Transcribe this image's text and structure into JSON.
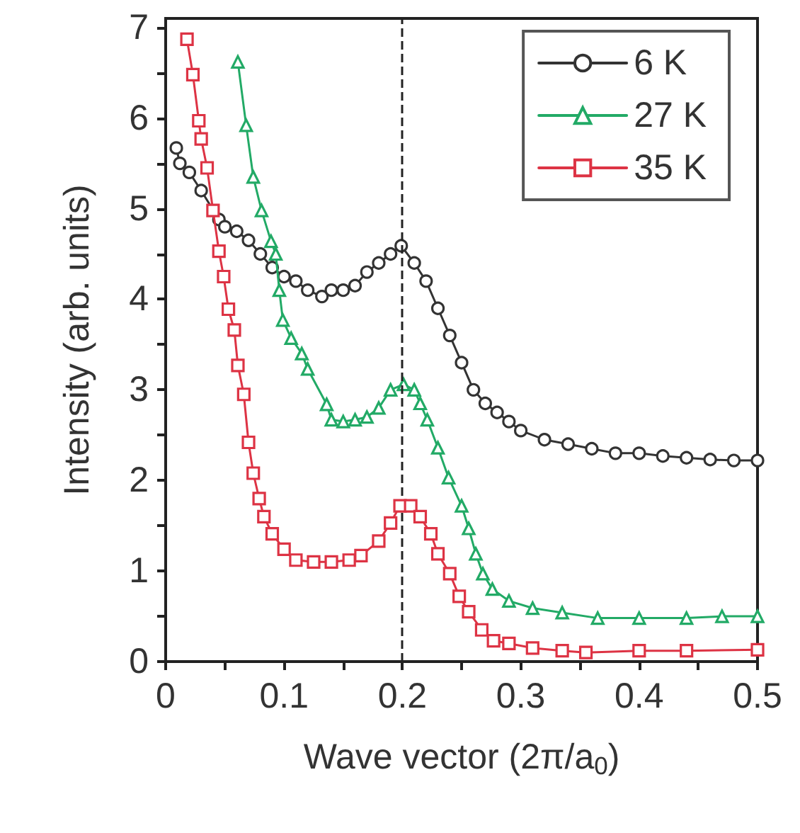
{
  "chart_data": {
    "type": "line",
    "xlabel": "Wave vector (2π/a$_{0}$)",
    "ylabel": "Intensity (arb. units)",
    "xlim": [
      0,
      0.5
    ],
    "ylim": [
      0,
      7.1
    ],
    "xticks": [
      0,
      {
        "value": 0.05,
        "label": null
      },
      0.1,
      {
        "value": 0.15,
        "label": null
      },
      0.2,
      {
        "value": 0.25,
        "label": null
      },
      0.3,
      {
        "value": 0.35,
        "label": null
      },
      0.4,
      {
        "value": 0.45,
        "label": null
      },
      0.5
    ],
    "yticks": [
      0,
      {
        "value": 0.5,
        "label": null
      },
      1,
      {
        "value": 1.5,
        "label": null
      },
      2,
      {
        "value": 2.5,
        "label": null
      },
      3,
      {
        "value": 3.5,
        "label": null
      },
      4,
      {
        "value": 4.5,
        "label": null
      },
      5,
      {
        "value": 5.5,
        "label": null
      },
      6,
      {
        "value": 6.5,
        "label": null
      },
      7
    ],
    "legend": "top right",
    "grid": false,
    "ref_lines": [
      {
        "axis": "x",
        "value": 0.2,
        "color": "#222222",
        "line_style": "dashed"
      }
    ],
    "series": [
      {
        "name": "6 K",
        "color": "#333333",
        "marker": "circle",
        "x": [
          0.009,
          0.012,
          0.02,
          0.03,
          0.045,
          0.05,
          0.06,
          0.07,
          0.08,
          0.09,
          0.1,
          0.11,
          0.12,
          0.132,
          0.14,
          0.15,
          0.16,
          0.17,
          0.18,
          0.19,
          0.199,
          0.21,
          0.22,
          0.23,
          0.24,
          0.25,
          0.26,
          0.27,
          0.28,
          0.29,
          0.3,
          0.32,
          0.34,
          0.36,
          0.38,
          0.4,
          0.42,
          0.44,
          0.46,
          0.48,
          0.5
        ],
        "values": [
          5.67,
          5.5,
          5.4,
          5.2,
          4.88,
          4.8,
          4.75,
          4.65,
          4.5,
          4.35,
          4.25,
          4.2,
          4.1,
          4.03,
          4.1,
          4.1,
          4.15,
          4.3,
          4.4,
          4.5,
          4.59,
          4.4,
          4.2,
          3.9,
          3.6,
          3.3,
          3.0,
          2.85,
          2.75,
          2.65,
          2.55,
          2.45,
          2.4,
          2.35,
          2.3,
          2.3,
          2.27,
          2.25,
          2.23,
          2.22,
          2.22
        ]
      },
      {
        "name": "27 K",
        "color": "#22aa66",
        "marker": "triangle",
        "x": [
          0.061,
          0.068,
          0.074,
          0.081,
          0.089,
          0.093,
          0.096,
          0.099,
          0.106,
          0.115,
          0.12,
          0.136,
          0.14,
          0.15,
          0.16,
          0.17,
          0.18,
          0.19,
          0.201,
          0.21,
          0.215,
          0.221,
          0.23,
          0.239,
          0.25,
          0.256,
          0.262,
          0.268,
          0.276,
          0.29,
          0.31,
          0.335,
          0.365,
          0.4,
          0.44,
          0.47,
          0.5
        ],
        "values": [
          6.62,
          5.92,
          5.35,
          4.98,
          4.64,
          4.5,
          4.1,
          3.77,
          3.57,
          3.4,
          3.23,
          2.84,
          2.67,
          2.65,
          2.67,
          2.7,
          2.8,
          3.0,
          3.06,
          3.0,
          2.85,
          2.67,
          2.36,
          2.03,
          1.72,
          1.47,
          1.19,
          0.97,
          0.8,
          0.67,
          0.59,
          0.54,
          0.48,
          0.48,
          0.48,
          0.5,
          0.5
        ]
      },
      {
        "name": "35 K",
        "color": "#dd3344",
        "marker": "square",
        "x": [
          0.018,
          0.023,
          0.028,
          0.03,
          0.035,
          0.04,
          0.045,
          0.049,
          0.053,
          0.058,
          0.061,
          0.066,
          0.07,
          0.074,
          0.079,
          0.083,
          0.09,
          0.1,
          0.11,
          0.125,
          0.14,
          0.155,
          0.165,
          0.18,
          0.19,
          0.198,
          0.207,
          0.215,
          0.224,
          0.23,
          0.24,
          0.248,
          0.256,
          0.267,
          0.277,
          0.29,
          0.31,
          0.335,
          0.355,
          0.4,
          0.44,
          0.5
        ],
        "values": [
          6.87,
          6.48,
          5.97,
          5.77,
          5.45,
          4.98,
          4.53,
          4.25,
          3.89,
          3.66,
          3.27,
          2.95,
          2.42,
          2.08,
          1.8,
          1.6,
          1.41,
          1.24,
          1.12,
          1.1,
          1.1,
          1.12,
          1.17,
          1.33,
          1.53,
          1.72,
          1.72,
          1.6,
          1.41,
          1.19,
          0.97,
          0.72,
          0.55,
          0.35,
          0.23,
          0.2,
          0.15,
          0.12,
          0.1,
          0.12,
          0.12,
          0.13
        ]
      }
    ]
  }
}
